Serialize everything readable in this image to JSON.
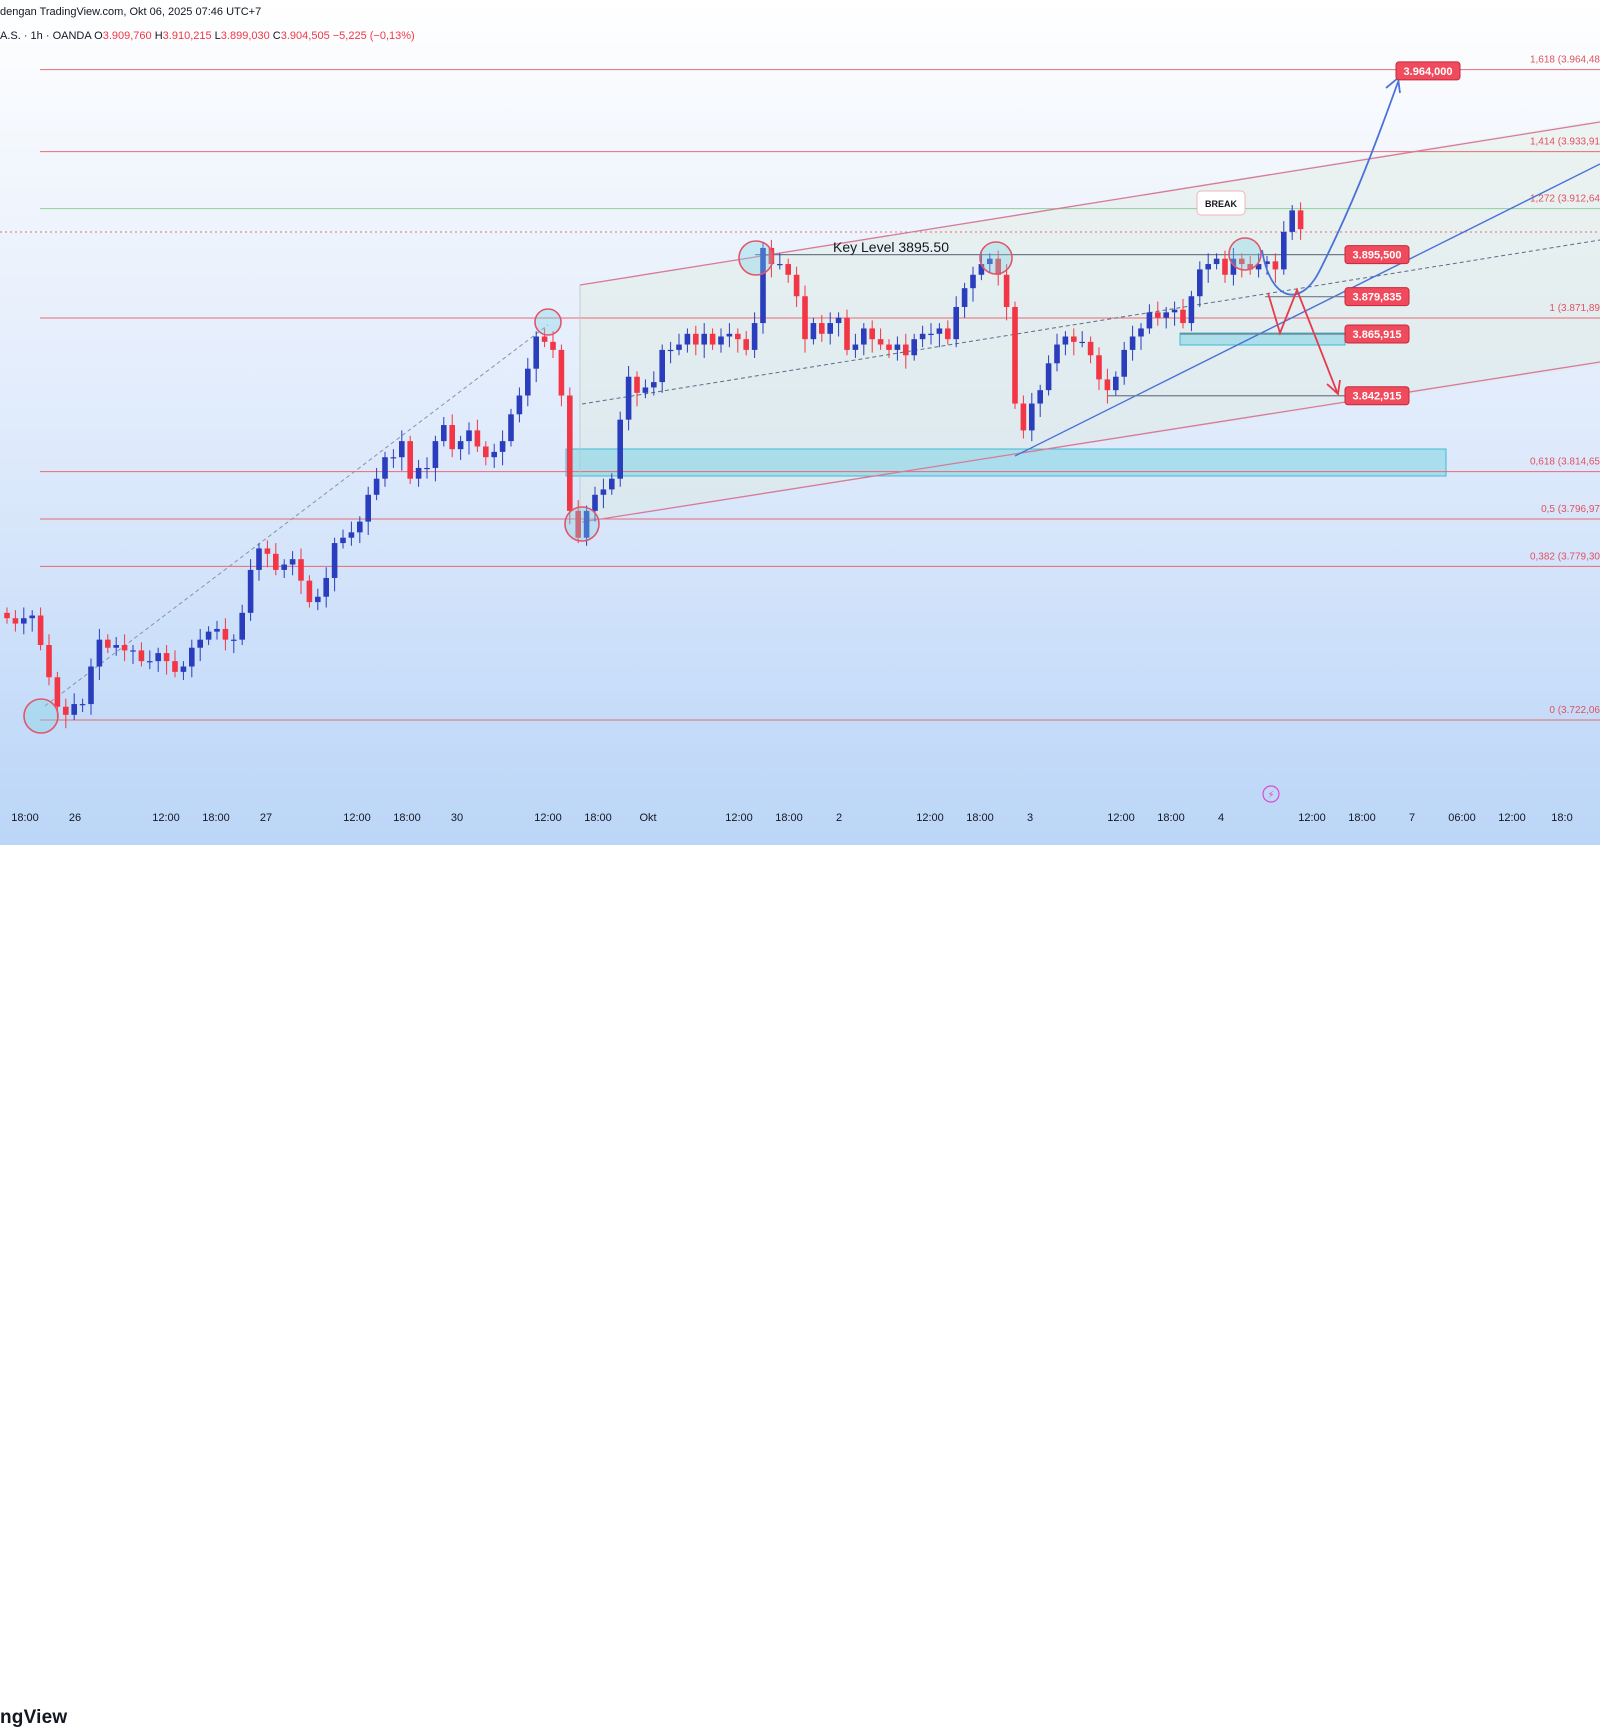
{
  "header": {
    "publish_text": "dengan TradingView.com, Okt 06, 2025 07:46 UTC+7",
    "symbol_text": "A.S. · 1h · OANDA",
    "open_label": "O",
    "open_value": "3.909,760",
    "high_label": "H",
    "high_value": "3.910,215",
    "low_label": "L",
    "low_value": "3.899,030",
    "close_label": "C",
    "close_value": "3.904,505",
    "change_value": "−5,225 (−0,13%)"
  },
  "footer": {
    "brand": "ngView"
  },
  "annotations": {
    "key_level": "Key Level 3895.50",
    "break_label": "BREAK",
    "targets": [
      "3.964,000",
      "3.895,500",
      "3.879,835",
      "3.865,915",
      "3.842,915"
    ]
  },
  "colors": {
    "bull": "#2a3dbd",
    "bear": "#f23645",
    "fib_line": "#e86a74",
    "channel": "#d77a9a",
    "zone": "#7fd3e3",
    "arrow_up": "#4a72d9",
    "arrow_down": "#e8394a"
  },
  "chart_data": {
    "type": "candlestick",
    "symbol": "A.S. · 1h · OANDA",
    "y_range": [
      3700,
      3990
    ],
    "fib_levels": [
      {
        "ratio": "1,618",
        "label": "1,618 (3.964,48",
        "price": 3964.48
      },
      {
        "ratio": "1,414",
        "label": "1,414 (3.933,91",
        "price": 3933.91
      },
      {
        "ratio": "1,272",
        "label": "1,272 (3.912,64",
        "price": 3912.64
      },
      {
        "ratio": "1",
        "label": "1 (3.871,89",
        "price": 3871.89
      },
      {
        "ratio": "0,618",
        "label": "0,618 (3.814,65",
        "price": 3814.65
      },
      {
        "ratio": "0,5",
        "label": "0,5 (3.796,97",
        "price": 3796.97
      },
      {
        "ratio": "0,382",
        "label": "0,382 (3.779,30",
        "price": 3779.3
      },
      {
        "ratio": "0",
        "label": "0 (3.722,06",
        "price": 3722.06
      }
    ],
    "key_level_price": 3895.5,
    "target_prices": [
      3964.0,
      3895.5,
      3879.835,
      3865.915,
      3842.915
    ],
    "time_ticks": [
      {
        "label": "18:00",
        "x": 25
      },
      {
        "label": "26",
        "x": 75
      },
      {
        "label": "12:00",
        "x": 166
      },
      {
        "label": "18:00",
        "x": 216
      },
      {
        "label": "27",
        "x": 266
      },
      {
        "label": "12:00",
        "x": 357
      },
      {
        "label": "18:00",
        "x": 407
      },
      {
        "label": "30",
        "x": 457
      },
      {
        "label": "12:00",
        "x": 548
      },
      {
        "label": "18:00",
        "x": 598
      },
      {
        "label": "Okt",
        "x": 648
      },
      {
        "label": "12:00",
        "x": 739
      },
      {
        "label": "18:00",
        "x": 789
      },
      {
        "label": "2",
        "x": 839
      },
      {
        "label": "12:00",
        "x": 930
      },
      {
        "label": "18:00",
        "x": 980
      },
      {
        "label": "3",
        "x": 1030
      },
      {
        "label": "12:00",
        "x": 1121
      },
      {
        "label": "18:00",
        "x": 1171
      },
      {
        "label": "4",
        "x": 1221
      },
      {
        "label": "12:00",
        "x": 1312
      },
      {
        "label": "18:00",
        "x": 1362
      },
      {
        "label": "7",
        "x": 1412
      },
      {
        "label": "06:00",
        "x": 1462
      },
      {
        "label": "12:00",
        "x": 1512
      },
      {
        "label": "18:0",
        "x": 1562
      }
    ],
    "closes": [
      3760,
      3758,
      3760,
      3761,
      3750,
      3738,
      3727,
      3724,
      3728,
      3728,
      3742,
      3752,
      3749,
      3750,
      3748,
      3748,
      3744,
      3744,
      3747,
      3744,
      3740,
      3742,
      3749,
      3752,
      3755,
      3756,
      3752,
      3752,
      3762,
      3778,
      3786,
      3784,
      3778,
      3780,
      3782,
      3774,
      3766,
      3768,
      3775,
      3788,
      3790,
      3792,
      3796,
      3806,
      3812,
      3820,
      3820,
      3826,
      3812,
      3816,
      3816,
      3826,
      3832,
      3823,
      3826,
      3830,
      3824,
      3820,
      3822,
      3826,
      3836,
      3843,
      3853,
      3865,
      3863,
      3860,
      3843,
      3800,
      3790,
      3800,
      3806,
      3808,
      3812,
      3834,
      3850,
      3844,
      3846,
      3848,
      3860,
      3860,
      3862,
      3866,
      3862,
      3866,
      3862,
      3865,
      3866,
      3864,
      3860,
      3870,
      3898,
      3892,
      3892,
      3888,
      3880,
      3864,
      3870,
      3866,
      3870,
      3872,
      3860,
      3862,
      3868,
      3864,
      3862,
      3860,
      3862,
      3858,
      3864,
      3866,
      3866,
      3868,
      3864,
      3876,
      3883,
      3888,
      3892,
      3894,
      3888,
      3876,
      3840,
      3830,
      3840,
      3845,
      3855,
      3862,
      3865,
      3863,
      3863,
      3858,
      3849,
      3845,
      3850,
      3860,
      3865,
      3868,
      3874,
      3872,
      3874,
      3875,
      3870,
      3880,
      3890,
      3892,
      3894,
      3888,
      3894,
      3892,
      3890,
      3892,
      3893,
      3890,
      3904,
      3912,
      3905
    ]
  }
}
